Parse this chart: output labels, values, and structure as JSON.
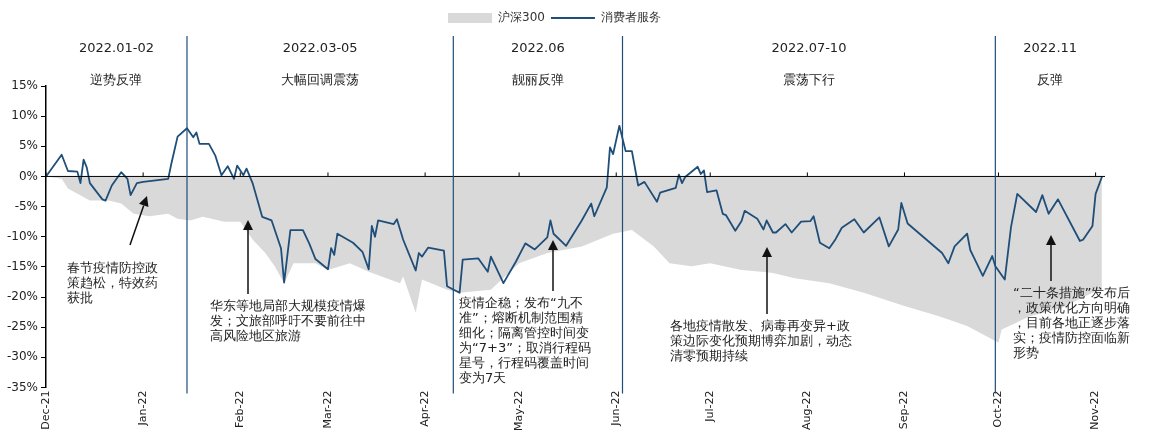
{
  "chart_data": {
    "type": "line",
    "series": [
      {
        "name": "沪深300",
        "type": "area",
        "color": "#d9d9d9",
        "x": [
          "2021-12-01",
          "2021-12-06",
          "2021-12-08",
          "2021-12-15",
          "2021-12-21",
          "2021-12-25",
          "2021-12-29",
          "2022-01-03",
          "2022-01-09",
          "2022-01-12",
          "2022-01-16",
          "2022-01-20",
          "2022-01-27",
          "2022-02-01",
          "2022-02-05",
          "2022-02-09",
          "2022-02-12",
          "2022-02-15",
          "2022-02-18",
          "2022-02-25",
          "2022-03-01",
          "2022-03-08",
          "2022-03-14",
          "2022-03-24",
          "2022-03-25",
          "2022-03-29",
          "2022-03-31",
          "2022-04-08",
          "2022-04-12",
          "2022-04-22",
          "2022-05-01",
          "2022-05-10",
          "2022-05-21",
          "2022-05-31",
          "2022-06-06",
          "2022-06-13",
          "2022-06-18",
          "2022-06-25",
          "2022-07-01",
          "2022-07-11",
          "2022-07-21",
          "2022-07-28",
          "2022-08-08",
          "2022-08-19",
          "2022-09-01",
          "2022-09-12",
          "2022-09-21",
          "2022-09-30",
          "2022-10-01",
          "2022-10-02",
          "2022-10-11",
          "2022-10-21",
          "2022-10-31",
          "2022-11-03"
        ],
        "values": [
          0,
          -0.4,
          -2.0,
          -4.0,
          -4.0,
          -4.5,
          -6.2,
          -6.6,
          -6.2,
          -7.0,
          -7.3,
          -6.7,
          -7.5,
          -7.5,
          -10.5,
          -12.7,
          -14.9,
          -17.7,
          -14.4,
          -14.4,
          -15.5,
          -14.4,
          -15.8,
          -17.7,
          -16.6,
          -22.6,
          -17.1,
          -18.8,
          -19.3,
          -18.8,
          -14.4,
          -12.7,
          -11.6,
          -9.5,
          -8.9,
          -11.6,
          -14.4,
          -14.9,
          -14.4,
          -15.5,
          -16.0,
          -16.9,
          -17.7,
          -19.3,
          -21.5,
          -23.2,
          -24.8,
          -27.3,
          -27.6,
          -25.4,
          -23.2,
          -21.8,
          -19.3,
          -18.8
        ]
      },
      {
        "name": "消费者服务",
        "type": "line",
        "color": "#1f4e79",
        "x": [
          "2021-12-01",
          "2021-12-06",
          "2021-12-08",
          "2021-12-11",
          "2021-12-12",
          "2021-12-13",
          "2021-12-14",
          "2021-12-15",
          "2021-12-19",
          "2021-12-20",
          "2021-12-22",
          "2021-12-25",
          "2021-12-27",
          "2021-12-28",
          "2021-12-30",
          "2022-01-01",
          "2022-01-09",
          "2022-01-10",
          "2022-01-12",
          "2022-01-15",
          "2022-01-17",
          "2022-01-18",
          "2022-01-19",
          "2022-01-22",
          "2022-01-24",
          "2022-01-26",
          "2022-01-28",
          "2022-01-30",
          "2022-01-31",
          "2022-02-02",
          "2022-02-03",
          "2022-02-05",
          "2022-02-08",
          "2022-02-11",
          "2022-02-14",
          "2022-02-15",
          "2022-02-17",
          "2022-02-21",
          "2022-02-23",
          "2022-02-25",
          "2022-03-01",
          "2022-03-02",
          "2022-03-03",
          "2022-03-04",
          "2022-03-09",
          "2022-03-12",
          "2022-03-14",
          "2022-03-15",
          "2022-03-16",
          "2022-03-17",
          "2022-03-22",
          "2022-03-23",
          "2022-03-25",
          "2022-03-29",
          "2022-03-30",
          "2022-03-31",
          "2022-04-02",
          "2022-04-07",
          "2022-04-08",
          "2022-04-12",
          "2022-04-13",
          "2022-04-18",
          "2022-04-21",
          "2022-04-22",
          "2022-04-26",
          "2022-04-30",
          "2022-05-03",
          "2022-05-06",
          "2022-05-10",
          "2022-05-11",
          "2022-05-12",
          "2022-05-16",
          "2022-05-21",
          "2022-05-24",
          "2022-05-25",
          "2022-05-29",
          "2022-05-30",
          "2022-05-31",
          "2022-06-02",
          "2022-06-04",
          "2022-06-06",
          "2022-06-08",
          "2022-06-10",
          "2022-06-14",
          "2022-06-15",
          "2022-06-20",
          "2022-06-21",
          "2022-06-22",
          "2022-06-23",
          "2022-06-27",
          "2022-06-28",
          "2022-06-29",
          "2022-06-30",
          "2022-07-03",
          "2022-07-05",
          "2022-07-06",
          "2022-07-09",
          "2022-07-11",
          "2022-07-12",
          "2022-07-16",
          "2022-07-18",
          "2022-07-19",
          "2022-07-21",
          "2022-07-22",
          "2022-07-25",
          "2022-07-27",
          "2022-07-30",
          "2022-08-02",
          "2022-08-03",
          "2022-08-05",
          "2022-08-08",
          "2022-08-10",
          "2022-08-12",
          "2022-08-16",
          "2022-08-19",
          "2022-08-24",
          "2022-08-27",
          "2022-08-30",
          "2022-08-31",
          "2022-09-02",
          "2022-09-13",
          "2022-09-15",
          "2022-09-17",
          "2022-09-21",
          "2022-09-22",
          "2022-09-26",
          "2022-09-29",
          "2022-09-30",
          "2022-10-03",
          "2022-10-05",
          "2022-10-07",
          "2022-10-13",
          "2022-10-15",
          "2022-10-17",
          "2022-10-20",
          "2022-10-27",
          "2022-10-28",
          "2022-10-31",
          "2022-11-01",
          "2022-11-03"
        ],
        "values": [
          0,
          3.6,
          0.9,
          0.8,
          -1.1,
          2.8,
          1.5,
          -1.1,
          -3.8,
          -4.0,
          -1.5,
          0.7,
          -0.4,
          -3.1,
          -1.1,
          -0.9,
          -0.4,
          2.1,
          6.6,
          8.0,
          6.5,
          7.3,
          5.4,
          5.4,
          3.5,
          0.2,
          1.7,
          -0.4,
          1.8,
          0.2,
          1.3,
          -1.2,
          -6.7,
          -7.3,
          -11.9,
          -17.6,
          -8.9,
          -8.9,
          -11.1,
          -13.7,
          -15.4,
          -11.9,
          -13.0,
          -9.5,
          -11.0,
          -12.5,
          -15.4,
          -8.2,
          -10.0,
          -7.3,
          -7.9,
          -7.1,
          -10.5,
          -15.6,
          -12.7,
          -13.3,
          -11.8,
          -12.3,
          -18.2,
          -19.3,
          -13.8,
          -13.6,
          -15.8,
          -13.3,
          -17.7,
          -14.1,
          -11.1,
          -12.1,
          -10.1,
          -7.3,
          -9.5,
          -11.5,
          -7.3,
          -4.5,
          -6.6,
          -1.8,
          4.8,
          3.7,
          8.4,
          4.2,
          4.2,
          -1.5,
          -0.9,
          -4.2,
          -2.7,
          -1.9,
          0.3,
          -1.1,
          -0.1,
          1.6,
          0.4,
          1.0,
          -2.6,
          -2.3,
          -6.2,
          -6.4,
          -9.0,
          -7.4,
          -5.7,
          -7.0,
          -8.8,
          -7.3,
          -9.3,
          -9.3,
          -7.9,
          -9.3,
          -7.5,
          -7.4,
          -6.6,
          -11.0,
          -11.9,
          -10.4,
          -8.5,
          -7.1,
          -9.3,
          -6.8,
          -11.6,
          -8.8,
          -4.4,
          -7.8,
          -12.7,
          -14.4,
          -11.6,
          -9.5,
          -12.2,
          -16.5,
          -13.2,
          -14.9,
          -17.1,
          -8.4,
          -2.9,
          -5.9,
          -3.1,
          -6.2,
          -3.8,
          -10.7,
          -10.5,
          -8.2,
          -2.9,
          -0.1
        ]
      }
    ],
    "xlim": [
      "2021-12-01",
      "2022-11-04"
    ],
    "xticks": [
      {
        "value": "2021-12-01",
        "label": "Dec-21"
      },
      {
        "value": "2022-01-01",
        "label": "Jan-22"
      },
      {
        "value": "2022-02-01",
        "label": "Feb-22"
      },
      {
        "value": "2022-03-01",
        "label": "Mar-22"
      },
      {
        "value": "2022-04-01",
        "label": "Apr-22"
      },
      {
        "value": "2022-05-01",
        "label": "May-22"
      },
      {
        "value": "2022-06-01",
        "label": "Jun-22"
      },
      {
        "value": "2022-07-01",
        "label": "Jul-22"
      },
      {
        "value": "2022-08-01",
        "label": "Aug-22"
      },
      {
        "value": "2022-09-01",
        "label": "Sep-22"
      },
      {
        "value": "2022-10-01",
        "label": "Oct-22"
      },
      {
        "value": "2022-11-01",
        "label": "Nov-22"
      }
    ],
    "ylim": [
      -35,
      15
    ],
    "yticks": [
      {
        "value": 15,
        "label": "15%"
      },
      {
        "value": 10,
        "label": "10%"
      },
      {
        "value": 5,
        "label": "5%"
      },
      {
        "value": 0,
        "label": "0%"
      },
      {
        "value": -5,
        "label": "-5%"
      },
      {
        "value": -10,
        "label": "-10%"
      },
      {
        "value": -15,
        "label": "-15%"
      },
      {
        "value": -20,
        "label": "-20%"
      },
      {
        "value": -25,
        "label": "-25%"
      },
      {
        "value": -30,
        "label": "-30%"
      },
      {
        "value": -35,
        "label": "-35%"
      }
    ],
    "ref_lines": [
      {
        "axis": "x",
        "value": "2022-01-15",
        "color": "#1f4e79"
      },
      {
        "axis": "x",
        "value": "2022-04-10",
        "color": "#1f4e79"
      },
      {
        "axis": "x",
        "value": "2022-06-03",
        "color": "#1f4e79"
      },
      {
        "axis": "x",
        "value": "2022-09-30",
        "color": "#1f4e79"
      }
    ],
    "annotations": [
      "2022.01-02",
      "逆势反弹",
      "2022.03-05",
      "大幅回调震荡",
      "2022.06",
      "靓丽反弹",
      "2022.07-10",
      "震荡下行",
      "2022.11",
      "反弹",
      "春节疫情防控政策趋松，特效药获批",
      "华东等地局部大规模疫情爆发；文旅部呼吁不要前往中高风险地区旅游",
      "疫情企稳；发布“九不准”；熔断机制范围精细化；隔离管控时间变为“7+3”；取消行程码星号，行程码覆盖时间变为7天",
      "各地疫情散发、病毒再变异+政策边际变化预期博弈加剧，动态清零预期持续",
      "“二十条措施”发布后，政策优化方向明确，目前各地正逐步落实；疫情防控面临新形势"
    ],
    "grid": false,
    "legend": "top"
  }
}
